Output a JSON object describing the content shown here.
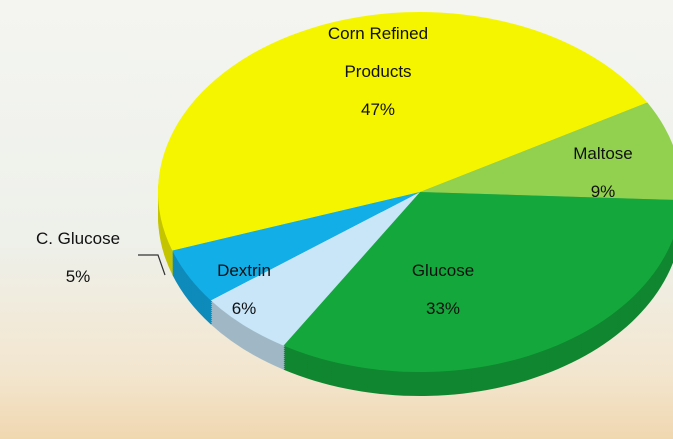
{
  "chart_data": {
    "type": "pie",
    "categories": [
      "Corn Refined Products",
      "Maltose",
      "Glucose",
      "Dextrin",
      "C. Glucose"
    ],
    "values": [
      47,
      9,
      33,
      6,
      5
    ],
    "value_labels": [
      "47%",
      "9%",
      "33%",
      "6%",
      "5%"
    ],
    "colors": [
      "#f5f500",
      "#92d050",
      "#14a83c",
      "#c8e6f8",
      "#12aee8"
    ]
  }
}
